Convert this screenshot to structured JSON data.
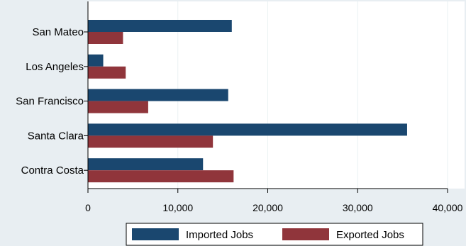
{
  "chart_data": {
    "type": "bar",
    "orientation": "horizontal",
    "categories": [
      "San Mateo",
      "Los Angeles",
      "San Francisco",
      "Santa Clara",
      "Contra Costa"
    ],
    "series": [
      {
        "name": "Imported Jobs",
        "color": "#1a476f",
        "values": [
          16000,
          1700,
          15600,
          35500,
          12800
        ]
      },
      {
        "name": "Exported Jobs",
        "color": "#90353b",
        "values": [
          3900,
          4200,
          6700,
          13900,
          16200
        ]
      }
    ],
    "x_ticks": [
      0,
      10000,
      20000,
      30000,
      40000
    ],
    "x_tick_labels": [
      "0",
      "10,000",
      "20,000",
      "30,000",
      "40,000"
    ],
    "xlim": [
      0,
      40000
    ],
    "grid": true,
    "legend_position": "bottom",
    "title": "",
    "xlabel": "",
    "ylabel": ""
  }
}
